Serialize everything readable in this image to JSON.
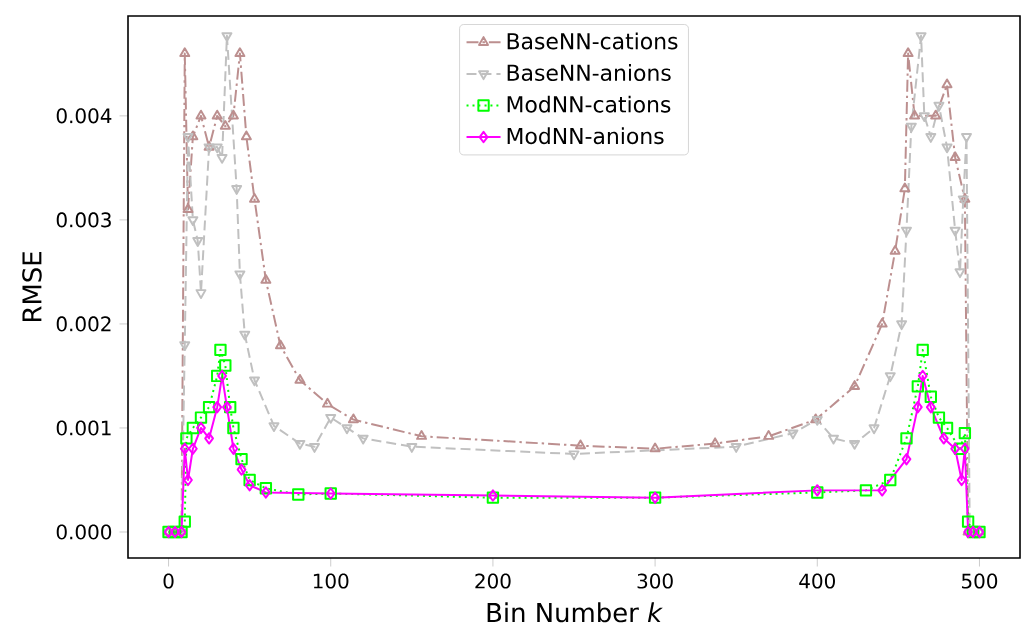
{
  "chart_data": {
    "type": "line",
    "xlabel": "Bin Number *k*",
    "ylabel": "RMSE",
    "xlim": [
      -25,
      525
    ],
    "ylim": [
      -0.00025,
      0.00496
    ],
    "xticks": [
      0,
      100,
      200,
      300,
      400,
      500
    ],
    "yticks": [
      {
        "value": 0,
        "label": "0.000"
      },
      {
        "value": 0.001,
        "label": "0.001"
      },
      {
        "value": 0.002,
        "label": "0.002"
      },
      {
        "value": 0.003,
        "label": "0.003"
      },
      {
        "value": 0.004,
        "label": "0.004"
      }
    ],
    "legend": "top",
    "grid": false,
    "series": [
      {
        "name": "BaseNN-cations",
        "color": "#bc8f8f",
        "marker": "triangle",
        "line_style": "dashdot",
        "x": [
          0,
          4,
          8,
          10,
          12,
          15,
          20,
          25,
          30,
          35,
          40,
          44,
          48,
          53,
          60,
          69,
          81,
          98,
          114,
          156,
          254,
          300,
          337,
          370,
          399,
          423,
          440,
          448,
          454,
          456,
          460,
          473,
          480,
          485,
          491,
          493,
          496,
          500
        ],
        "values": [
          0,
          0,
          0,
          0.0046,
          0.0031,
          0.0038,
          0.004,
          0.0037,
          0.004,
          0.0039,
          0.004,
          0.0046,
          0.0038,
          0.0032,
          0.00242,
          0.00179,
          0.00146,
          0.00123,
          0.00108,
          0.00092,
          0.00083,
          0.0008,
          0.00085,
          0.00092,
          0.00108,
          0.0014,
          0.002,
          0.0027,
          0.0033,
          0.0046,
          0.004,
          0.004,
          0.0043,
          0.0036,
          0.0032,
          0,
          0,
          0
        ]
      },
      {
        "name": "BaseNN-anions",
        "color": "#c0c0c0",
        "marker": "triangle_down",
        "line_style": "dashed",
        "x": [
          0,
          4,
          8,
          10,
          12,
          15,
          18,
          20,
          25,
          30,
          33,
          36,
          42,
          44,
          47,
          53,
          65,
          81,
          90,
          100,
          110,
          120,
          150,
          250,
          350,
          385,
          400,
          410,
          423,
          435,
          445,
          452,
          455,
          458,
          464,
          466,
          470,
          475,
          480,
          485,
          488,
          490,
          492,
          494,
          497,
          500
        ],
        "values": [
          0,
          0,
          0,
          0.0018,
          0.0038,
          0.003,
          0.0028,
          0.0023,
          0.0037,
          0.0037,
          0.0036,
          0.00477,
          0.0033,
          0.00248,
          0.0019,
          0.00146,
          0.00102,
          0.00085,
          0.00082,
          0.0011,
          0.001,
          0.0009,
          0.00082,
          0.00075,
          0.00082,
          0.00095,
          0.00108,
          0.0009,
          0.00085,
          0.001,
          0.0015,
          0.002,
          0.0029,
          0.0039,
          0.00477,
          0.004,
          0.0038,
          0.0041,
          0.0037,
          0.0029,
          0.0025,
          0.0032,
          0.0038,
          0,
          0,
          0
        ]
      },
      {
        "name": "ModNN-cations",
        "color": "#00ff00",
        "marker": "square",
        "line_style": "dotted",
        "x": [
          0,
          4,
          8,
          10,
          11,
          15,
          20,
          25,
          30,
          32,
          35,
          38,
          40,
          45,
          50,
          60,
          80,
          100,
          200,
          300,
          400,
          430,
          445,
          455,
          462,
          465,
          470,
          475,
          480,
          488,
          491,
          493,
          496,
          500
        ],
        "values": [
          0,
          0,
          0,
          0.0001,
          0.0009,
          0.001,
          0.0011,
          0.0012,
          0.0015,
          0.00175,
          0.0016,
          0.0012,
          0.001,
          0.0007,
          0.0005,
          0.00042,
          0.00036,
          0.00037,
          0.00033,
          0.00033,
          0.00038,
          0.0004,
          0.0005,
          0.0009,
          0.0014,
          0.00175,
          0.0013,
          0.0011,
          0.001,
          0.0008,
          0.00095,
          0.0001,
          0,
          0
        ]
      },
      {
        "name": "ModNN-anions",
        "color": "#ff00ff",
        "marker": "diamond",
        "line_style": "solid",
        "x": [
          0,
          4,
          8,
          10,
          12,
          15,
          20,
          25,
          30,
          33,
          36,
          40,
          45,
          50,
          60,
          100,
          200,
          300,
          400,
          440,
          455,
          462,
          465,
          470,
          478,
          485,
          489,
          491,
          493,
          496,
          500
        ],
        "values": [
          0,
          0,
          0,
          0.0008,
          0.0005,
          0.0008,
          0.001,
          0.0009,
          0.0012,
          0.0015,
          0.0012,
          0.0008,
          0.0006,
          0.00045,
          0.00038,
          0.00037,
          0.00035,
          0.00033,
          0.0004,
          0.0004,
          0.0007,
          0.0012,
          0.0015,
          0.0012,
          0.0009,
          0.0008,
          0.0005,
          0.0008,
          0,
          0,
          0
        ]
      }
    ]
  }
}
